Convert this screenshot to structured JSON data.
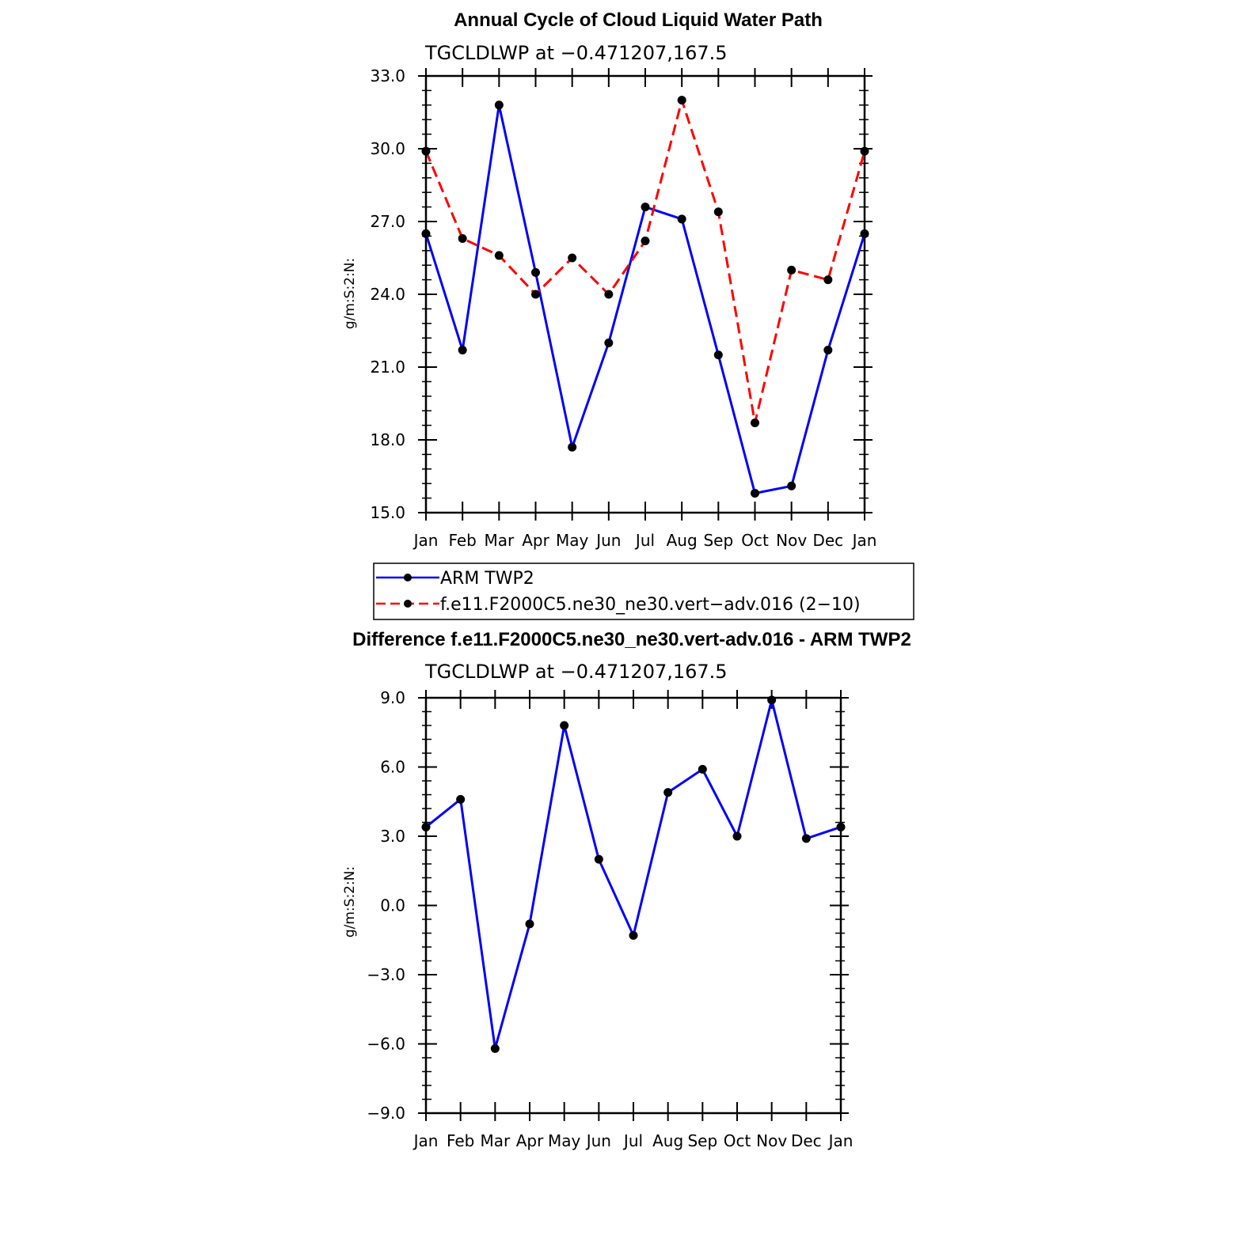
{
  "chart_data": [
    {
      "type": "line",
      "title": "Annual Cycle of Cloud Liquid Water Path",
      "subtitle": "TGCLDLWP  at  −0.471207,167.5",
      "ylabel": "g/m:S:2:N:",
      "xlabel": "",
      "ylim": [
        15.0,
        33.0
      ],
      "yticks": [
        "15.0",
        "18.0",
        "21.0",
        "24.0",
        "27.0",
        "30.0",
        "33.0"
      ],
      "categories": [
        "Jan",
        "Feb",
        "Mar",
        "Apr",
        "May",
        "Jun",
        "Jul",
        "Aug",
        "Sep",
        "Oct",
        "Nov",
        "Dec",
        "Jan"
      ],
      "grid": false,
      "legend_position": "below",
      "series": [
        {
          "name": "ARM  TWP2",
          "color": "#0000ff",
          "dash": "solid",
          "values": [
            26.5,
            21.7,
            31.8,
            24.9,
            17.7,
            22.0,
            27.6,
            27.1,
            21.5,
            15.8,
            16.1,
            21.7,
            26.5
          ]
        },
        {
          "name": "f.e11.F2000C5.ne30_ne30.vert−adv.016  (2−10)",
          "color": "#ff0000",
          "dash": "dashed",
          "values": [
            29.9,
            26.3,
            25.6,
            24.0,
            25.5,
            24.0,
            26.2,
            32.0,
            27.4,
            18.7,
            25.0,
            24.6,
            29.9
          ]
        }
      ]
    },
    {
      "type": "line",
      "title": "Difference f.e11.F2000C5.ne30_ne30.vert-adv.016 - ARM TWP2",
      "subtitle": "TGCLDLWP  at  −0.471207,167.5",
      "ylabel": "g/m:S:2:N:",
      "xlabel": "",
      "ylim": [
        -9.0,
        9.0
      ],
      "yticks": [
        "−9.0",
        "−6.0",
        "−3.0",
        "0.0",
        "3.0",
        "6.0",
        "9.0"
      ],
      "categories": [
        "Jan",
        "Feb",
        "Mar",
        "Apr",
        "May",
        "Jun",
        "Jul",
        "Aug",
        "Sep",
        "Oct",
        "Nov",
        "Dec",
        "Jan"
      ],
      "grid": false,
      "series": [
        {
          "color": "#0000ff",
          "dash": "solid",
          "values": [
            3.4,
            4.6,
            -6.2,
            -0.8,
            7.8,
            2.0,
            -1.3,
            4.9,
            5.9,
            3.0,
            8.9,
            2.9,
            3.4
          ]
        }
      ]
    }
  ]
}
